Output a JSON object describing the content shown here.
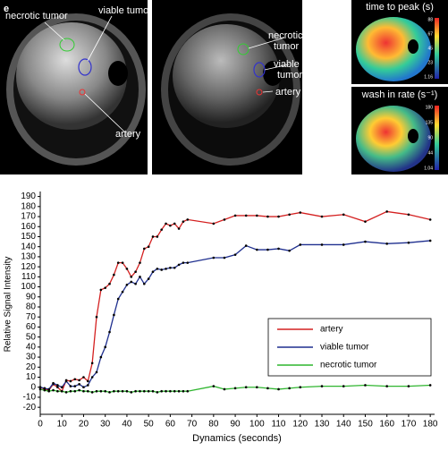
{
  "panel_label": "e",
  "images": [
    {
      "labels": [
        "necrotic tumor",
        "viable tumor",
        "artery"
      ]
    },
    {
      "labels": [
        "necrotic",
        "tumor",
        "viable",
        "tumor",
        "artery"
      ]
    },
    {
      "title": "time to peak (s)",
      "colorbar": [
        "88",
        "67",
        "45",
        "23",
        "1.16"
      ]
    },
    {
      "title": "wash in rate (s⁻¹)",
      "colorbar": [
        "180",
        "135",
        "90",
        "44",
        "1.04"
      ]
    }
  ],
  "chart_data": {
    "type": "line",
    "xlabel": "Dynamics (seconds)",
    "ylabel": "Relative Signal Intensity",
    "x": [
      0,
      2,
      4,
      6,
      8,
      10,
      12,
      14,
      16,
      18,
      20,
      22,
      24,
      26,
      28,
      30,
      32,
      34,
      36,
      38,
      40,
      42,
      44,
      46,
      48,
      50,
      52,
      54,
      56,
      58,
      60,
      62,
      64,
      66,
      68,
      80,
      85,
      90,
      95,
      100,
      105,
      110,
      115,
      120,
      130,
      140,
      150,
      160,
      170,
      180
    ],
    "series": [
      {
        "name": "artery",
        "color": "#d42020",
        "values": [
          0,
          -2,
          -3,
          3,
          0,
          -4,
          7,
          6,
          8,
          7,
          10,
          6,
          24,
          70,
          97,
          99,
          103,
          112,
          124,
          124,
          118,
          110,
          115,
          124,
          138,
          140,
          150,
          150,
          157,
          163,
          161,
          163,
          158,
          165,
          167,
          163,
          167,
          171,
          171,
          171,
          170,
          170,
          172,
          174,
          170,
          172,
          165,
          175,
          172,
          167
        ]
      },
      {
        "name": "viable tumor",
        "color": "#1f2f8f",
        "values": [
          0,
          -1,
          -2,
          4,
          2,
          0,
          6,
          1,
          1,
          3,
          0,
          2,
          10,
          15,
          30,
          40,
          55,
          72,
          88,
          95,
          102,
          105,
          103,
          110,
          103,
          108,
          115,
          118,
          117,
          118,
          119,
          119,
          122,
          124,
          124,
          129,
          129,
          132,
          141,
          137,
          137,
          138,
          136,
          142,
          142,
          142,
          145,
          143,
          144,
          146
        ]
      },
      {
        "name": "necrotic tumor",
        "color": "#2fb52f",
        "values": [
          -2,
          -3,
          -4,
          -3,
          -4,
          -4,
          -5,
          -4,
          -4,
          -3,
          -4,
          -4,
          -5,
          -4,
          -4,
          -4,
          -5,
          -4,
          -4,
          -4,
          -4,
          -5,
          -4,
          -4,
          -4,
          -4,
          -4,
          -5,
          -4,
          -4,
          -4,
          -4,
          -4,
          -4,
          -4,
          1,
          -2,
          -1,
          0,
          0,
          -1,
          -2,
          -1,
          0,
          1,
          1,
          2,
          1,
          1,
          2
        ]
      }
    ],
    "xlim": [
      0,
      182
    ],
    "ylim": [
      -27,
      195
    ],
    "xticks": [
      0,
      10,
      20,
      30,
      40,
      50,
      60,
      70,
      80,
      90,
      100,
      110,
      120,
      130,
      140,
      150,
      160,
      170,
      180
    ],
    "yticks": [
      -20,
      -10,
      0,
      10,
      20,
      30,
      40,
      50,
      60,
      70,
      80,
      90,
      100,
      110,
      120,
      130,
      140,
      150,
      160,
      170,
      180,
      190
    ],
    "legend": "lower right"
  }
}
